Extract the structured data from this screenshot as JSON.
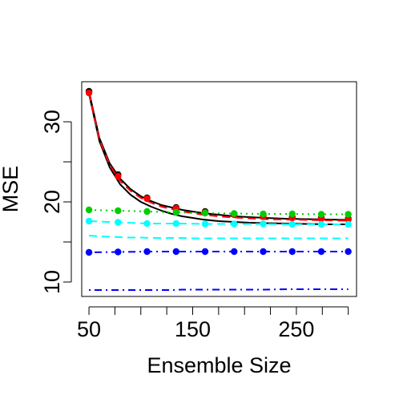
{
  "chart_data": {
    "type": "line",
    "xlabel": "Ensemble Size",
    "ylabel": "MSE",
    "xlim": [
      43,
      308
    ],
    "ylim": [
      8.2,
      35
    ],
    "x_ticks": [
      50,
      75,
      100,
      125,
      150,
      175,
      200,
      225,
      250,
      275,
      300
    ],
    "x_tick_labels": [
      {
        "value": 50,
        "label": "50"
      },
      {
        "value": 150,
        "label": "150"
      },
      {
        "value": 250,
        "label": "250"
      }
    ],
    "y_ticks": [
      10,
      15,
      20,
      25,
      30
    ],
    "y_tick_labels": [
      {
        "value": 10,
        "label": "10"
      },
      {
        "value": 20,
        "label": "20"
      },
      {
        "value": 30,
        "label": "30"
      }
    ],
    "x": [
      50,
      78,
      106,
      134,
      162,
      190,
      218,
      246,
      274,
      300
    ],
    "curve_x": [
      50,
      60,
      70,
      80,
      90,
      100,
      110,
      120,
      130,
      140,
      150,
      160,
      175,
      190,
      205,
      220,
      240,
      260,
      280,
      300
    ],
    "series": [
      {
        "color": "#000000",
        "line_style": "solid",
        "markers": true,
        "values": [
          33.8,
          23.4,
          20.5,
          19.3,
          18.8,
          18.5,
          18.3,
          18.1,
          18.0,
          17.9
        ],
        "curve": [
          33.8,
          28.0,
          24.8,
          22.9,
          21.6,
          20.7,
          20.1,
          19.6,
          19.3,
          19.0,
          18.8,
          18.6,
          18.4,
          18.2,
          18.1,
          18.0,
          17.9,
          17.85,
          17.8,
          17.75
        ]
      },
      {
        "color": "#000000",
        "line_style": "solid",
        "markers": false,
        "curve": [
          33.5,
          27.6,
          24.3,
          22.2,
          20.9,
          20.0,
          19.4,
          18.9,
          18.5,
          18.2,
          18.0,
          17.8,
          17.6,
          17.5,
          17.4,
          17.35,
          17.3,
          17.25,
          17.2,
          17.2
        ]
      },
      {
        "color": "#ff0000",
        "line_style": "dashed",
        "markers": true,
        "values": [
          33.6,
          23.2,
          20.4,
          19.2,
          18.7,
          18.4,
          18.2,
          18.0,
          17.9,
          17.8
        ],
        "curve": [
          33.6,
          27.8,
          24.6,
          22.6,
          21.4,
          20.5,
          19.9,
          19.4,
          19.1,
          18.8,
          18.6,
          18.4,
          18.2,
          18.05,
          17.95,
          17.85,
          17.8,
          17.75,
          17.7,
          17.65
        ]
      },
      {
        "color": "#00cd00",
        "line_style": "dotted",
        "markers": true,
        "values": [
          19.0,
          18.9,
          18.8,
          18.7,
          18.6,
          18.55,
          18.5,
          18.5,
          18.45,
          18.45
        ]
      },
      {
        "color": "#00ffff",
        "line_style": "dashed",
        "markers": true,
        "values": [
          17.6,
          17.45,
          17.3,
          17.3,
          17.25,
          17.25,
          17.25,
          17.2,
          17.2,
          17.2
        ]
      },
      {
        "color": "#00ffff",
        "line_style": "dashed",
        "markers": false,
        "curve": [
          15.8,
          15.7,
          15.65,
          15.6,
          15.55,
          15.55,
          15.5,
          15.5,
          15.5,
          15.5,
          15.45,
          15.45,
          15.45,
          15.45,
          15.45,
          15.45,
          15.45,
          15.45,
          15.45,
          15.45
        ]
      },
      {
        "color": "#0000ff",
        "line_style": "dotdash",
        "markers": true,
        "values": [
          13.7,
          13.75,
          13.8,
          13.8,
          13.8,
          13.8,
          13.8,
          13.8,
          13.8,
          13.8
        ]
      },
      {
        "color": "#0000ff",
        "line_style": "dotdash",
        "markers": false,
        "curve": [
          9.0,
          9.0,
          9.0,
          9.0,
          9.0,
          9.0,
          9.0,
          9.0,
          9.0,
          9.05,
          9.05,
          9.05,
          9.05,
          9.05,
          9.05,
          9.05,
          9.1,
          9.1,
          9.1,
          9.1
        ]
      }
    ]
  }
}
